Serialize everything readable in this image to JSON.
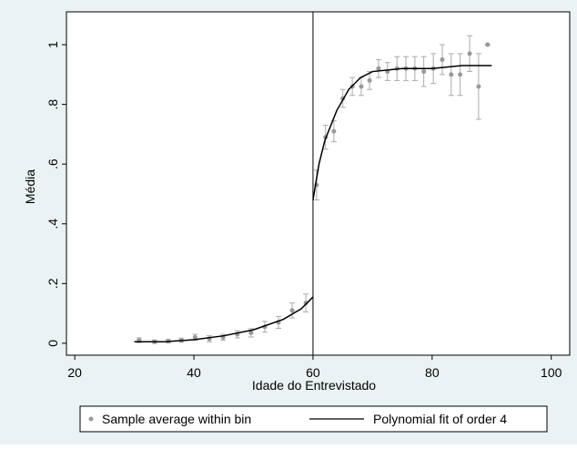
{
  "chart_data": {
    "type": "scatter",
    "x_label": "Idade do Entrevistado",
    "y_label": "Média",
    "xlim": [
      18.6,
      103.1
    ],
    "ylim": [
      -0.04,
      1.11
    ],
    "xticks": [
      20,
      40,
      60,
      80,
      100
    ],
    "yticks": [
      0,
      {
        "value": 0.2,
        "label": ".2"
      },
      {
        "value": 0.4,
        "label": ".4"
      },
      {
        "value": 0.6,
        "label": ".6"
      },
      {
        "value": 0.8,
        "label": ".8"
      },
      1
    ],
    "cutoff": 60,
    "series": [
      {
        "name": "Sample average within bin",
        "type": "scatter",
        "color": "#999999",
        "x": [
          30.8,
          33.4,
          35.7,
          37.9,
          40.2,
          42.6,
          44.9,
          47.3,
          49.6,
          51.9,
          54.2,
          56.5,
          58.8,
          60.6,
          62.1,
          63.5,
          65,
          66.6,
          68.1,
          69.5,
          71,
          72.5,
          74.1,
          75.6,
          77.1,
          78.6,
          80.2,
          81.7,
          83.2,
          84.7,
          86.3,
          87.8,
          89.3
        ],
        "values": [
          0.01,
          0.005,
          0.007,
          0.01,
          0.02,
          0.015,
          0.02,
          0.03,
          0.035,
          0.055,
          0.07,
          0.11,
          0.135,
          0.53,
          0.69,
          0.71,
          0.82,
          0.86,
          0.86,
          0.88,
          0.92,
          0.91,
          0.92,
          0.92,
          0.92,
          0.91,
          0.92,
          0.95,
          0.9,
          0.9,
          0.97,
          0.86,
          1.0
        ],
        "errors": [
          0.008,
          0.006,
          0.006,
          0.007,
          0.01,
          0.01,
          0.01,
          0.012,
          0.014,
          0.018,
          0.02,
          0.025,
          0.03,
          0.05,
          0.04,
          0.035,
          0.03,
          0.03,
          0.03,
          0.03,
          0.03,
          0.03,
          0.04,
          0.04,
          0.04,
          0.05,
          0.05,
          0.05,
          0.07,
          0.07,
          0.06,
          0.11,
          0
        ]
      },
      {
        "name": "Polynomial fit of order 4",
        "type": "line",
        "color": "#000000",
        "x": [
          30,
          35,
          40,
          45,
          50,
          55,
          58,
          60,
          60,
          60,
          61,
          62,
          64,
          66,
          68,
          70,
          75,
          80,
          85,
          90
        ],
        "values": [
          0.005,
          0.005,
          0.012,
          0.025,
          0.045,
          0.08,
          0.115,
          0.155,
          null,
          0.48,
          0.6,
          0.68,
          0.78,
          0.85,
          0.89,
          0.91,
          0.92,
          0.92,
          0.93,
          0.93
        ]
      }
    ]
  }
}
